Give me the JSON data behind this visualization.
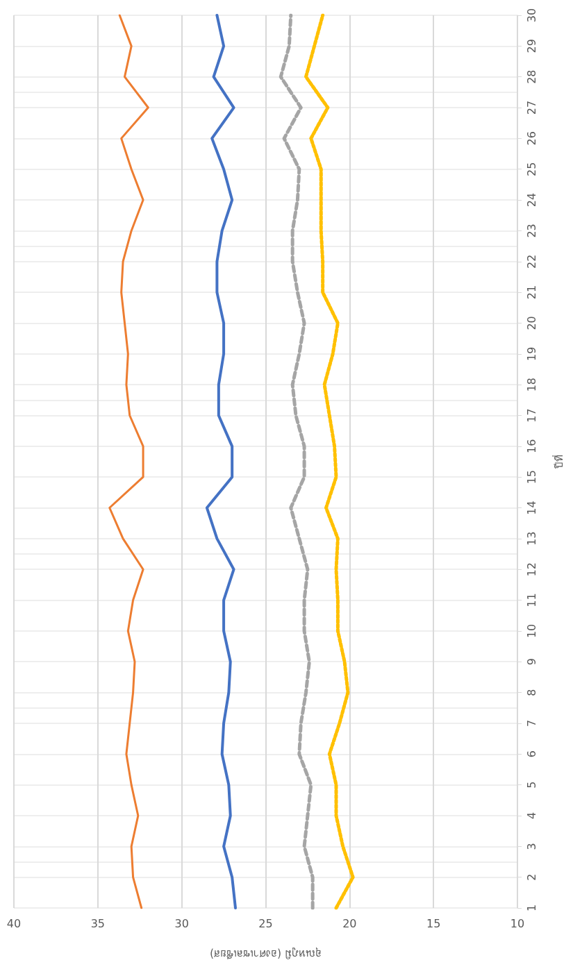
{
  "chart_data": {
    "type": "line",
    "xlabel": "อุณหภูมิ (องศาเซลเซียส)",
    "ylabel": "ปีที่",
    "xlim": [
      40,
      10
    ],
    "xticks": [
      40,
      35,
      30,
      25,
      20,
      15,
      10
    ],
    "ylim": [
      1,
      30
    ],
    "yticks": [
      1,
      2,
      3,
      4,
      5,
      6,
      7,
      8,
      9,
      10,
      11,
      12,
      13,
      14,
      15,
      16,
      17,
      18,
      19,
      20,
      21,
      22,
      23,
      24,
      25,
      26,
      27,
      28,
      29,
      30
    ],
    "grid": true,
    "marker": "none",
    "series": [
      {
        "color": "#ed7d31",
        "line_style": "solid",
        "x": [
          32.4,
          32.9,
          33.0,
          32.6,
          33.0,
          33.3,
          33.1,
          32.9,
          32.8,
          33.2,
          32.9,
          32.3,
          33.5,
          34.3,
          32.3,
          32.3,
          33.1,
          33.3,
          33.2,
          33.4,
          33.6,
          33.5,
          33.0,
          32.3,
          33.0,
          33.6,
          32.0,
          33.4,
          33.0,
          33.7
        ],
        "values": [
          1,
          2,
          3,
          4,
          5,
          6,
          7,
          8,
          9,
          10,
          11,
          12,
          13,
          14,
          15,
          16,
          17,
          18,
          19,
          20,
          21,
          22,
          23,
          24,
          25,
          26,
          27,
          28,
          29,
          30
        ]
      },
      {
        "color": "#4472c4",
        "line_style": "solid",
        "x": [
          26.8,
          27.0,
          27.5,
          27.1,
          27.2,
          27.6,
          27.5,
          27.2,
          27.1,
          27.5,
          27.5,
          26.9,
          27.9,
          28.5,
          27.0,
          27.0,
          27.8,
          27.8,
          27.5,
          27.5,
          27.9,
          27.9,
          27.6,
          27.0,
          27.5,
          28.2,
          26.9,
          28.1,
          27.5,
          27.9
        ],
        "values": [
          1,
          2,
          3,
          4,
          5,
          6,
          7,
          8,
          9,
          10,
          11,
          12,
          13,
          14,
          15,
          16,
          17,
          18,
          19,
          20,
          21,
          22,
          23,
          24,
          25,
          26,
          27,
          28,
          29,
          30
        ]
      },
      {
        "color": "#a5a5a5",
        "line_style": "dashed",
        "x": [
          22.2,
          22.2,
          22.7,
          22.5,
          22.3,
          23.0,
          22.9,
          22.6,
          22.4,
          22.7,
          22.7,
          22.5,
          23.0,
          23.5,
          22.7,
          22.7,
          23.2,
          23.4,
          23.0,
          22.7,
          23.1,
          23.4,
          23.4,
          23.1,
          23.0,
          23.9,
          22.9,
          24.1,
          23.6,
          23.5
        ],
        "values": [
          1,
          2,
          3,
          4,
          5,
          6,
          7,
          8,
          9,
          10,
          11,
          12,
          13,
          14,
          15,
          16,
          17,
          18,
          19,
          20,
          21,
          22,
          23,
          24,
          25,
          26,
          27,
          28,
          29,
          30
        ]
      },
      {
        "color": "#ffc000",
        "line_style": "dotted",
        "x": [
          20.8,
          19.8,
          20.4,
          20.8,
          20.8,
          21.2,
          20.6,
          20.1,
          20.3,
          20.7,
          20.7,
          20.8,
          20.7,
          21.4,
          20.8,
          20.9,
          21.2,
          21.5,
          21.0,
          20.7,
          21.6,
          21.6,
          21.7,
          21.7,
          21.7,
          22.3,
          21.3,
          22.6,
          22.1,
          21.6
        ],
        "values": [
          1,
          2,
          3,
          4,
          5,
          6,
          7,
          8,
          9,
          10,
          11,
          12,
          13,
          14,
          15,
          16,
          17,
          18,
          19,
          20,
          21,
          22,
          23,
          24,
          25,
          26,
          27,
          28,
          29,
          30
        ]
      }
    ]
  }
}
